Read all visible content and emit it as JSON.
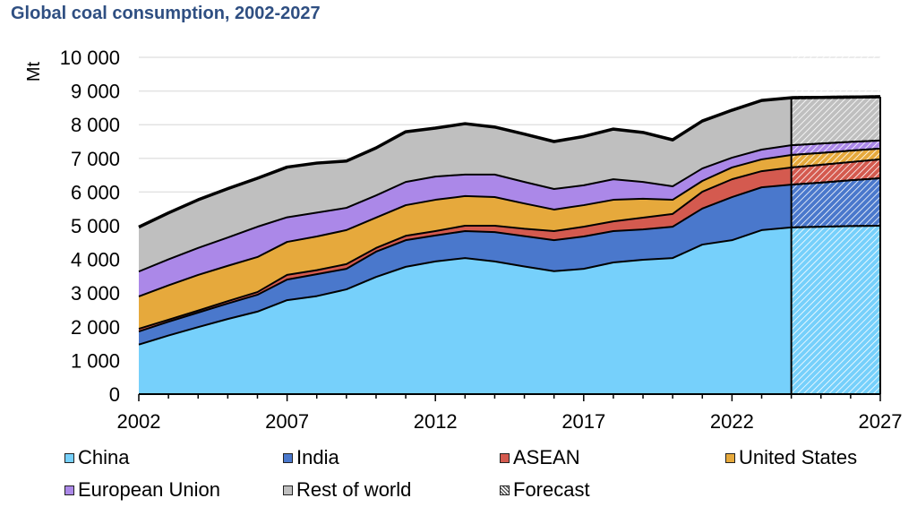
{
  "title": "Global coal consumption, 2002-2027",
  "chart_data": {
    "type": "area",
    "stacked": true,
    "title": "Global coal consumption, 2002-2027",
    "xlabel": "",
    "ylabel": "Mt",
    "ylim": [
      0,
      10000
    ],
    "yticks": [
      0,
      1000,
      2000,
      3000,
      4000,
      5000,
      6000,
      7000,
      8000,
      9000,
      10000
    ],
    "ytick_labels": [
      "0",
      "1 000",
      "2 000",
      "3 000",
      "4 000",
      "5 000",
      "6 000",
      "7 000",
      "8 000",
      "9 000",
      "10 000"
    ],
    "xlim": [
      2002,
      2027
    ],
    "xtick_labels": [
      "2002",
      "2007",
      "2012",
      "2017",
      "2022",
      "2027"
    ],
    "grid": "horizontal",
    "legend_position": "bottom",
    "forecast_start": 2024,
    "x": [
      2002,
      2003,
      2004,
      2005,
      2006,
      2007,
      2008,
      2009,
      2010,
      2011,
      2012,
      2013,
      2014,
      2015,
      2016,
      2017,
      2018,
      2019,
      2020,
      2021,
      2022,
      2023,
      2024,
      2025,
      2026,
      2027
    ],
    "series": [
      {
        "name": "China",
        "color": "#76d0fb",
        "values": [
          1470,
          1740,
          1990,
          2230,
          2450,
          2790,
          2910,
          3110,
          3480,
          3780,
          3940,
          4040,
          3940,
          3790,
          3650,
          3720,
          3910,
          3990,
          4040,
          4440,
          4570,
          4870,
          4950,
          4970,
          4990,
          5000
        ]
      },
      {
        "name": "India",
        "color": "#4a78cc",
        "values": [
          390,
          410,
          430,
          460,
          500,
          610,
          650,
          610,
          750,
          790,
          770,
          800,
          870,
          900,
          920,
          960,
          930,
          900,
          930,
          1070,
          1280,
          1270,
          1270,
          1310,
          1360,
          1410
        ]
      },
      {
        "name": "ASEAN",
        "color": "#d45a4f",
        "values": [
          80,
          60,
          60,
          70,
          80,
          140,
          120,
          140,
          110,
          130,
          130,
          160,
          190,
          220,
          270,
          290,
          290,
          350,
          380,
          500,
          530,
          480,
          510,
          530,
          540,
          560
        ]
      },
      {
        "name": "United States",
        "color": "#e6a93c",
        "values": [
          960,
          1020,
          1060,
          1050,
          1040,
          980,
          1000,
          1010,
          900,
          910,
          930,
          880,
          850,
          750,
          640,
          640,
          640,
          560,
          420,
          320,
          350,
          350,
          370,
          350,
          340,
          320
        ]
      },
      {
        "name": "European Union",
        "color": "#ab88e8",
        "values": [
          740,
          770,
          800,
          840,
          900,
          730,
          710,
          660,
          660,
          690,
          690,
          640,
          670,
          640,
          610,
          590,
          610,
          500,
          400,
          370,
          290,
          290,
          290,
          280,
          260,
          240
        ]
      },
      {
        "name": "Rest of world",
        "color": "#bfbfbf",
        "values": [
          1320,
          1380,
          1430,
          1450,
          1440,
          1490,
          1470,
          1390,
          1410,
          1490,
          1440,
          1510,
          1410,
          1420,
          1410,
          1450,
          1490,
          1470,
          1380,
          1410,
          1410,
          1460,
          1410,
          1370,
          1330,
          1300
        ]
      }
    ],
    "legend": [
      {
        "label": "China",
        "color": "#76d0fb"
      },
      {
        "label": "India",
        "color": "#4a78cc"
      },
      {
        "label": "ASEAN",
        "color": "#d45a4f"
      },
      {
        "label": "United States",
        "color": "#e6a93c"
      },
      {
        "label": "European Union",
        "color": "#ab88e8"
      },
      {
        "label": "Rest of world",
        "color": "#bfbfbf"
      },
      {
        "label": "Forecast",
        "color": "hatched"
      }
    ]
  }
}
